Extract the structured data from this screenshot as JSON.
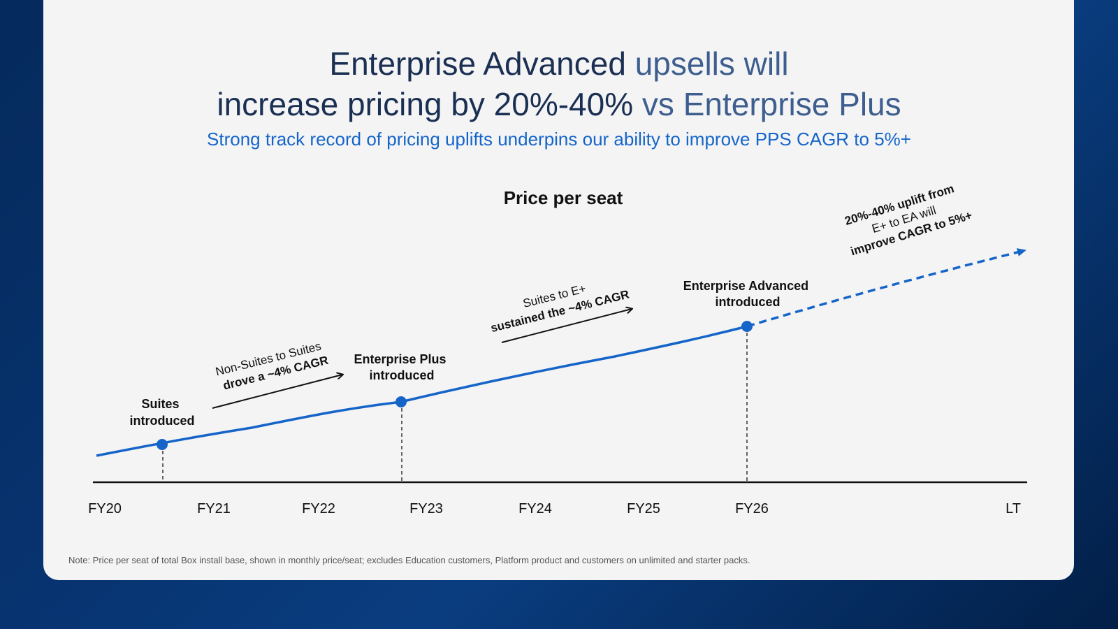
{
  "title": {
    "line1_dark": "Enterprise Advanced",
    "line1_light": " upsells will",
    "line2_dark": "increase pricing by 20%-40%",
    "line2_light": " vs Enterprise Plus"
  },
  "subtitle": "Strong track record of pricing uplifts underpins our ability to improve PPS CAGR to 5%+",
  "footnote": "Note: Price per seat of total Box install base, shown in monthly price/seat; excludes Education customers, Platform product and customers on unlimited and starter packs.",
  "colors": {
    "line": "#1565c9",
    "accent": "#1565c9",
    "axis": "#111111"
  },
  "chart_data": {
    "type": "line",
    "title": "Price per seat",
    "x_categories": [
      "FY20",
      "FY21",
      "FY22",
      "FY23",
      "FY24",
      "FY25",
      "FY26",
      "LT"
    ],
    "milestones": [
      {
        "x": "FY20.5",
        "label_lines": [
          "Suites",
          "introduced"
        ]
      },
      {
        "x": "FY22.75",
        "label_lines": [
          "Enterprise Plus",
          "introduced"
        ]
      },
      {
        "x": "FY26",
        "label_lines": [
          "Enterprise Advanced",
          "introduced"
        ]
      }
    ],
    "annotations": [
      {
        "text_lines": [
          "Non-Suites to Suites",
          "drove a ~4% CAGR"
        ],
        "bold_line": 1
      },
      {
        "text_lines": [
          "Suites to E+",
          "sustained the ~4% CAGR"
        ],
        "bold_line": 1
      },
      {
        "text_lines": [
          "20%-40% uplift from",
          "E+ to EA will",
          "improve CAGR to 5%+"
        ],
        "bold_lines": [
          0,
          2
        ]
      }
    ],
    "series": [
      {
        "style": "solid",
        "segment": "FY20 to FY26"
      },
      {
        "style": "dashed",
        "segment": "FY26 to LT"
      }
    ],
    "grid": false,
    "y_axis_labels": false
  }
}
